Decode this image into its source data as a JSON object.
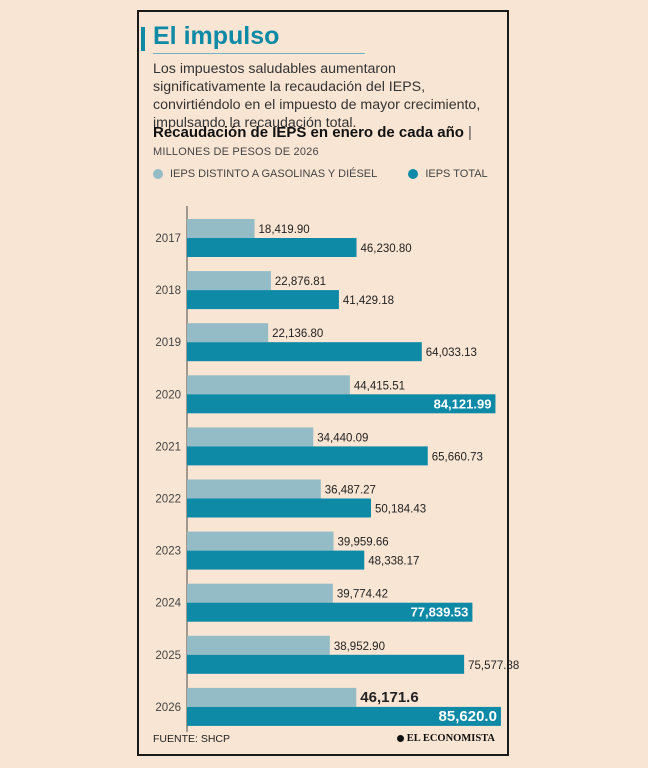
{
  "header": {
    "title": "El impulso",
    "intro": "Los impuestos saludables aumentaron significativamente la recaudación del IEPS, convirtiéndolo en el impuesto de mayor crecimiento, impulsando la recaudación total."
  },
  "colors": {
    "accent": "#0e8aa6",
    "light": "#93bcc6",
    "axis": "#4a4a4a"
  },
  "chart_data": {
    "type": "bar",
    "orientation": "horizontal",
    "title": "Recaudación de IEPS en enero de cada año",
    "title_separator": "|",
    "subtitle": "MILLONES DE PESOS DE 2026",
    "xlim": [
      0,
      90000
    ],
    "categories": [
      "2017",
      "2018",
      "2019",
      "2020",
      "2021",
      "2022",
      "2023",
      "2024",
      "2025",
      "2026"
    ],
    "series": [
      {
        "name": "IEPS DISTINTO A GASOLINAS Y DIÉSEL",
        "color": "#93bcc6",
        "values": [
          18419.9,
          22876.81,
          22136.8,
          44415.51,
          34440.09,
          36487.27,
          39959.66,
          39774.42,
          38952.9,
          46171.6
        ],
        "labels": [
          "18,419.90",
          "22,876.81",
          "22,136.80",
          "44,415.51",
          "34,440.09",
          "36,487.27",
          "39,959.66",
          "39,774.42",
          "38,952.90",
          "46,171.6"
        ],
        "label_inside": [
          false,
          false,
          false,
          false,
          false,
          false,
          false,
          false,
          false,
          false
        ],
        "label_bold": [
          false,
          false,
          false,
          false,
          false,
          false,
          false,
          false,
          false,
          true
        ]
      },
      {
        "name": "IEPS TOTAL",
        "color": "#0e8aa6",
        "values": [
          46230.8,
          41429.18,
          64033.13,
          84121.99,
          65660.73,
          50184.43,
          48338.17,
          77839.53,
          75577.88,
          85620.0
        ],
        "labels": [
          "46,230.80",
          "41,429.18",
          "64,033.13",
          "84,121.99",
          "65,660.73",
          "50,184.43",
          "48,338.17",
          "77,839.53",
          "75,577.88",
          "85,620.0"
        ],
        "label_inside": [
          false,
          false,
          false,
          true,
          false,
          false,
          false,
          true,
          false,
          true
        ],
        "label_bold": [
          false,
          false,
          false,
          true,
          false,
          false,
          false,
          true,
          false,
          true
        ]
      }
    ]
  },
  "footer": {
    "source": "FUENTE: SHCP",
    "brand": "EL ECONOMISTA"
  }
}
